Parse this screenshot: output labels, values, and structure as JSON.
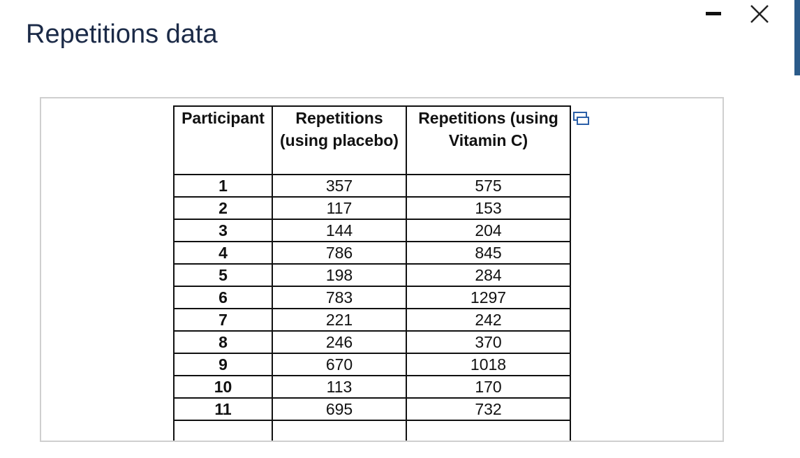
{
  "header": {
    "title": "Repetitions data"
  },
  "table": {
    "columns": [
      "Participant",
      "Repetitions (using placebo)",
      "Repetitions (using Vitamin C)"
    ],
    "rows": [
      [
        1,
        357,
        575
      ],
      [
        2,
        117,
        153
      ],
      [
        3,
        144,
        204
      ],
      [
        4,
        786,
        845
      ],
      [
        5,
        198,
        284
      ],
      [
        6,
        783,
        1297
      ],
      [
        7,
        221,
        242
      ],
      [
        8,
        246,
        370
      ],
      [
        9,
        670,
        1018
      ],
      [
        10,
        113,
        170
      ],
      [
        11,
        695,
        732
      ]
    ]
  }
}
